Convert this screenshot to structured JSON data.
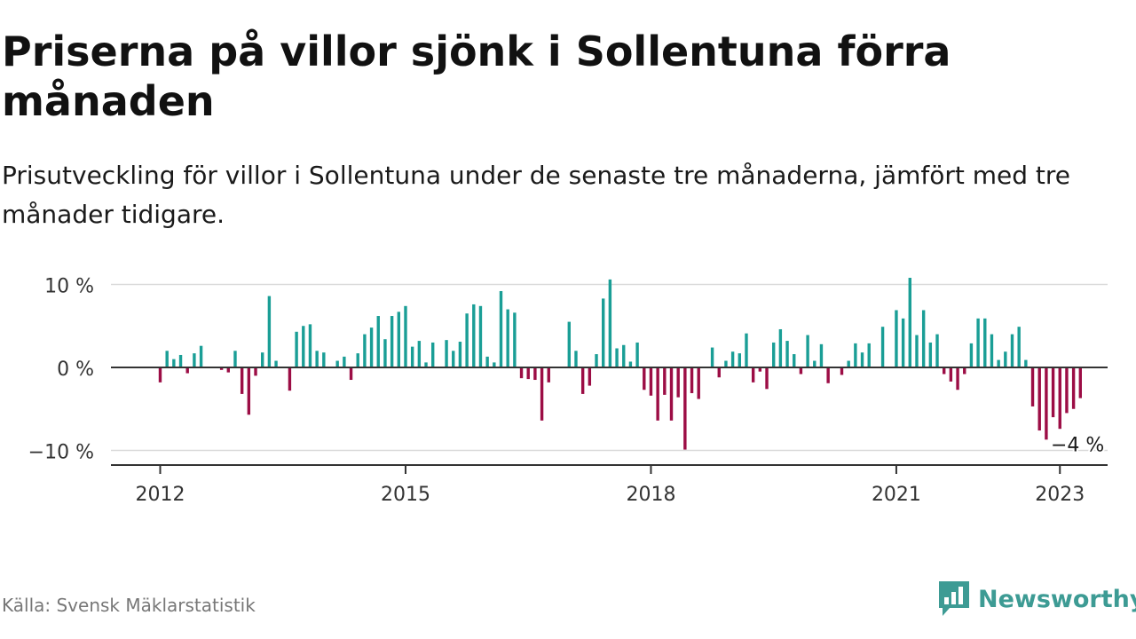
{
  "title": "Priserna på villor sjönk i Sollentuna förra månaden",
  "subtitle": "Prisutveckling för villor i Sollentuna under de senaste tre månaderna, jämfört med tre månader tidigare.",
  "source": "Källa: Svensk Mäklarstatistik",
  "brand": {
    "name": "Newsworthy",
    "icon": "newsworthy-logo-icon"
  },
  "colors": {
    "positive": "#1a9e96",
    "negative": "#9c0d45",
    "grid": "#d9d9d9",
    "zero_line": "#333333",
    "brand": "#3d9b94"
  },
  "chart_data": {
    "type": "bar",
    "x_unit": "month",
    "y_unit": "%",
    "ylim": [
      -11,
      11
    ],
    "yticks": [
      {
        "value": 10,
        "label": "10 %"
      },
      {
        "value": 0,
        "label": "0 %"
      },
      {
        "value": -10,
        "label": "−10 %"
      }
    ],
    "xticks": [
      {
        "value": "2012-01",
        "label": "2012"
      },
      {
        "value": "2015-01",
        "label": "2015"
      },
      {
        "value": "2018-01",
        "label": "2018"
      },
      {
        "value": "2021-01",
        "label": "2021"
      },
      {
        "value": "2023-01",
        "label": "2023"
      }
    ],
    "grid": true,
    "end_annotation": "−4 %",
    "series": [
      {
        "start": "2012-01",
        "values": [
          -1.8,
          2.0,
          1.0,
          1.5,
          -0.7,
          1.7,
          2.6,
          0,
          0,
          -0.3,
          -0.6,
          2.0,
          -3.2,
          -5.7,
          -1.0,
          1.8,
          8.6,
          0.8,
          0,
          -2.8,
          4.3,
          5.0,
          5.2,
          2.0,
          1.8,
          0,
          0.8,
          1.3,
          -1.5,
          1.7,
          4.0,
          4.8,
          6.2,
          3.4,
          6.2,
          6.7,
          7.4,
          2.5,
          3.2,
          0.6,
          3.0,
          0,
          3.3,
          2.0,
          3.1,
          6.5,
          7.6,
          7.4,
          1.3,
          0.6,
          9.2,
          7.0,
          6.6,
          -1.3,
          -1.4,
          -1.5,
          -6.4,
          -1.8,
          0,
          0,
          5.5,
          2.0,
          -3.2,
          -2.2,
          1.6,
          8.3,
          10.6,
          2.3,
          2.7,
          0.7,
          3.0,
          -2.7,
          -3.4,
          -6.4,
          -3.3,
          -6.4,
          -3.6,
          -9.9,
          -3.1,
          -3.8,
          0,
          2.4,
          -1.2,
          0.8,
          1.9,
          1.7,
          4.1,
          -1.8,
          -0.5,
          -2.6,
          3.0,
          4.6,
          3.2,
          1.6,
          -0.8,
          3.9,
          0.8,
          2.8,
          -1.9,
          0,
          -0.9,
          0.8,
          2.9,
          1.8,
          2.9,
          0,
          4.9,
          0,
          6.9,
          5.9,
          10.8,
          3.9,
          6.9,
          3.0,
          4.0,
          -0.8,
          -1.7,
          -2.7,
          -0.8,
          2.9,
          5.9,
          5.9,
          4.0,
          0.9,
          1.9,
          4.0,
          4.9,
          0.9,
          -4.7,
          -7.6,
          -8.7,
          -6.0,
          -7.4,
          -5.5,
          -5.0,
          -3.7
        ]
      }
    ]
  }
}
